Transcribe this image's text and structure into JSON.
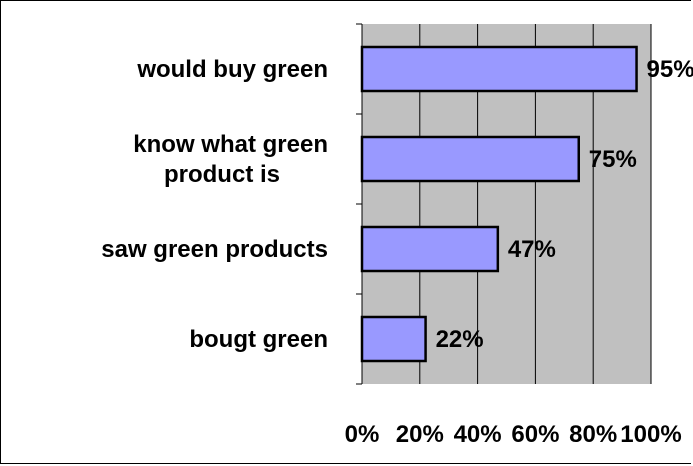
{
  "chart_data": {
    "type": "bar",
    "orientation": "horizontal",
    "categories": [
      "would buy green",
      "know what green product is",
      "saw green products",
      "bougt green"
    ],
    "category_lines": [
      [
        "would buy green"
      ],
      [
        "know what green",
        "product is"
      ],
      [
        "saw green products"
      ],
      [
        "bougt green"
      ]
    ],
    "values": [
      95,
      75,
      47,
      22
    ],
    "data_labels": [
      "95%",
      "75%",
      "47%",
      "22%"
    ],
    "xlim": [
      0,
      100
    ],
    "x_ticks": [
      0,
      20,
      40,
      60,
      80,
      100
    ],
    "x_tick_labels": [
      "0%",
      "20%",
      "40%",
      "60%",
      "80%",
      "100%"
    ],
    "grid": true,
    "legend": "none",
    "colors": {
      "bar_fill": "#9999ff",
      "bar_stroke": "#000000",
      "plot_background": "#c0c0c0",
      "gridline": "#000000"
    }
  }
}
